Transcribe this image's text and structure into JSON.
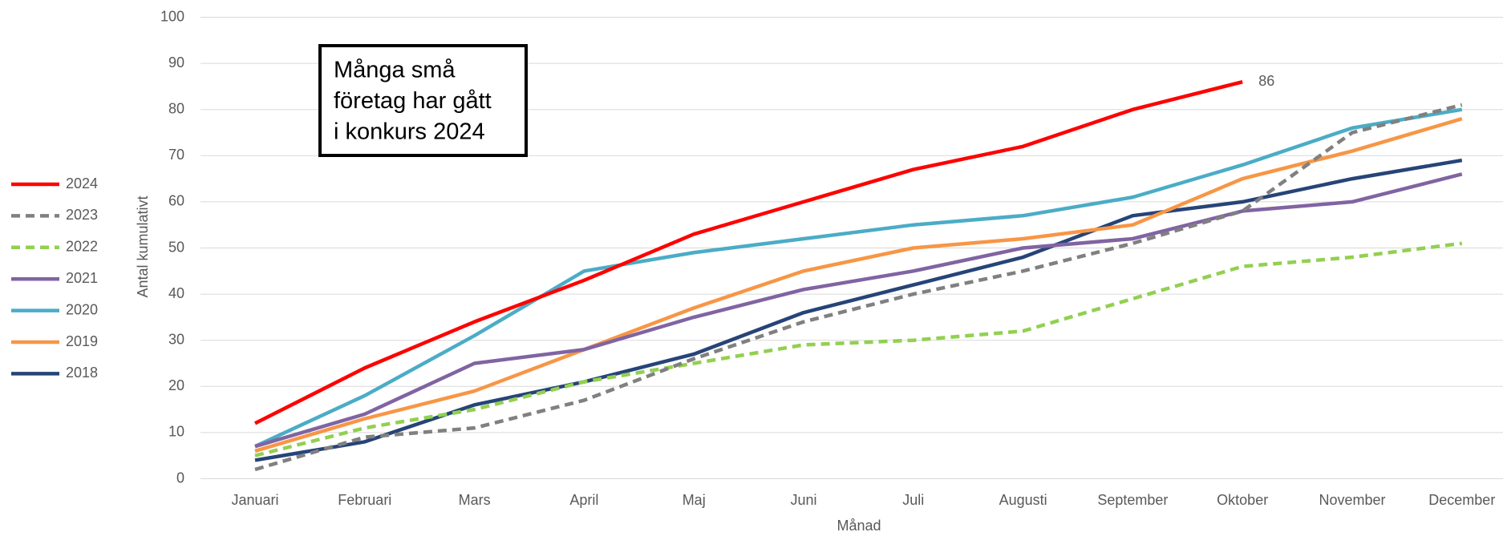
{
  "chart_data": {
    "type": "line",
    "annotation": [
      "Många små",
      "företag har gått",
      "i konkurs 2024"
    ],
    "x_label": "Månad",
    "y_label": "Antal kumulativt",
    "categories": [
      "Januari",
      "Februari",
      "Mars",
      "April",
      "Maj",
      "Juni",
      "Juli",
      "Augusti",
      "September",
      "Oktober",
      "November",
      "December"
    ],
    "ylim": [
      0,
      100
    ],
    "yticks": [
      0,
      10,
      20,
      30,
      40,
      50,
      60,
      70,
      80,
      90,
      100
    ],
    "grid": true,
    "legend": "left",
    "series": [
      {
        "name": "2024",
        "color": "#ff0000",
        "dashed": false,
        "values": [
          12,
          24,
          34,
          43,
          53,
          60,
          67,
          72,
          80,
          86,
          null,
          null
        ]
      },
      {
        "name": "2023",
        "color": "#808080",
        "dashed": true,
        "values": [
          2,
          9,
          11,
          17,
          26,
          34,
          40,
          45,
          51,
          58,
          75,
          81
        ]
      },
      {
        "name": "2022",
        "color": "#92d050",
        "dashed": true,
        "values": [
          5,
          11,
          15,
          21,
          25,
          29,
          30,
          32,
          39,
          46,
          48,
          51
        ]
      },
      {
        "name": "2021",
        "color": "#8064a2",
        "dashed": false,
        "values": [
          7,
          14,
          25,
          28,
          35,
          41,
          45,
          50,
          52,
          58,
          60,
          66
        ]
      },
      {
        "name": "2020",
        "color": "#4bacc6",
        "dashed": false,
        "values": [
          7,
          18,
          31,
          45,
          49,
          52,
          55,
          57,
          61,
          68,
          76,
          80
        ]
      },
      {
        "name": "2019",
        "color": "#f79646",
        "dashed": false,
        "values": [
          6,
          13,
          19,
          28,
          37,
          45,
          50,
          52,
          55,
          65,
          71,
          78
        ]
      },
      {
        "name": "2018",
        "color": "#264478",
        "dashed": false,
        "values": [
          4,
          8,
          16,
          21,
          27,
          36,
          42,
          48,
          57,
          60,
          65,
          69
        ]
      }
    ],
    "data_labels": [
      {
        "series": 0,
        "index": 9
      }
    ]
  }
}
